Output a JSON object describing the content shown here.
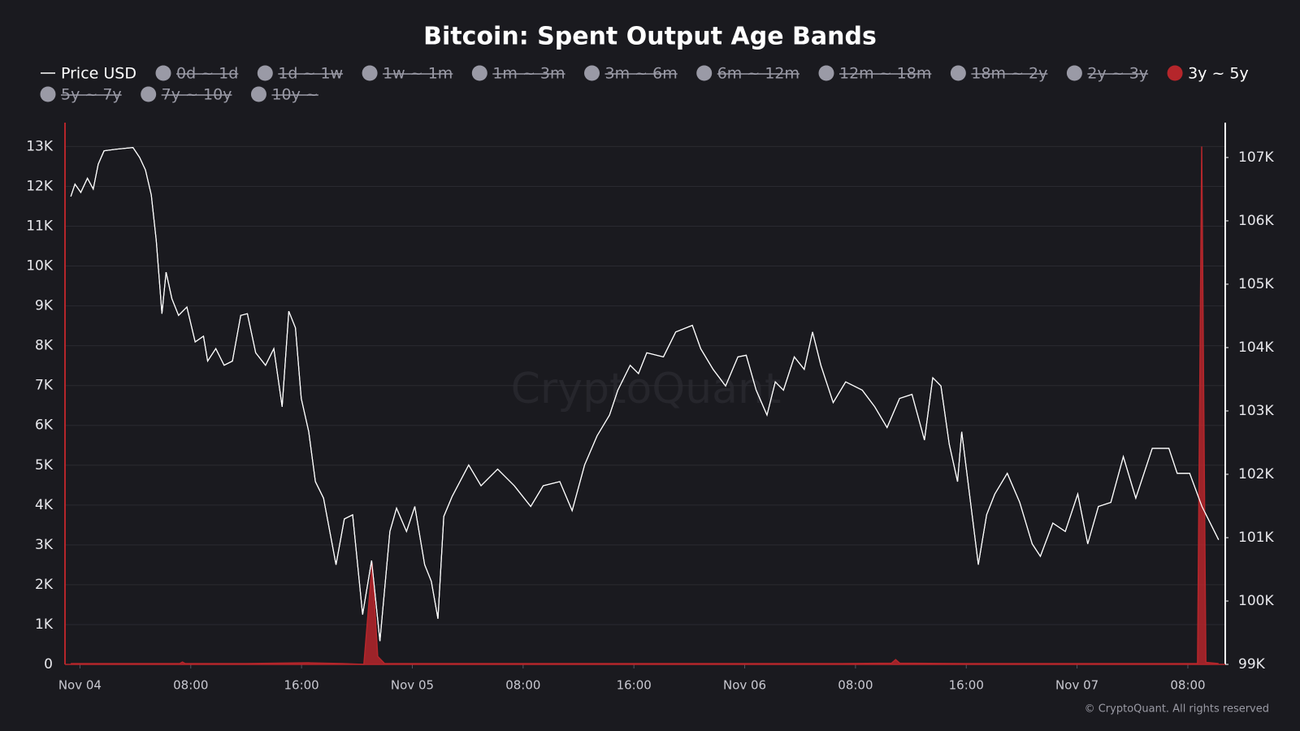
{
  "chart_data": {
    "type": "line_area",
    "title": "Bitcoin: Spent Output Age Bands",
    "watermark": "CryptoQuant",
    "footer": "© CryptoQuant. All rights reserved",
    "xlim": [
      -1.08,
      82.7
    ],
    "xticks": [
      {
        "value": 0,
        "label": "Nov 04"
      },
      {
        "value": 8,
        "label": "08:00"
      },
      {
        "value": 16,
        "label": "16:00"
      },
      {
        "value": 24,
        "label": "Nov 05"
      },
      {
        "value": 32,
        "label": "08:00"
      },
      {
        "value": 40,
        "label": "16:00"
      },
      {
        "value": 48,
        "label": "Nov 06"
      },
      {
        "value": 56,
        "label": "08:00"
      },
      {
        "value": 64,
        "label": "16:00"
      },
      {
        "value": 72,
        "label": "Nov 07"
      },
      {
        "value": 80,
        "label": "08:00"
      }
    ],
    "ylim": [
      0,
      13600
    ],
    "yticks": [
      0,
      {
        "value": 1000,
        "label": "1K"
      },
      {
        "value": 2000,
        "label": "2K"
      },
      {
        "value": 3000,
        "label": "3K"
      },
      {
        "value": 4000,
        "label": "4K"
      },
      {
        "value": 5000,
        "label": "5K"
      },
      {
        "value": 6000,
        "label": "6K"
      },
      {
        "value": 7000,
        "label": "7K"
      },
      {
        "value": 8000,
        "label": "8K"
      },
      {
        "value": 9000,
        "label": "9K"
      },
      {
        "value": 10000,
        "label": "10K"
      },
      {
        "value": 11000,
        "label": "11K"
      },
      {
        "value": 12000,
        "label": "12K"
      },
      {
        "value": 13000,
        "label": "13K"
      }
    ],
    "y2lim": [
      99000,
      107550
    ],
    "y2ticks": [
      {
        "value": 99000,
        "label": "99K"
      },
      {
        "value": 100000,
        "label": "100K"
      },
      {
        "value": 101000,
        "label": "101K"
      },
      {
        "value": 102000,
        "label": "102K"
      },
      {
        "value": 103000,
        "label": "103K"
      },
      {
        "value": 104000,
        "label": "104K"
      },
      {
        "value": 105000,
        "label": "105K"
      },
      {
        "value": 106000,
        "label": "106K"
      },
      {
        "value": 107000,
        "label": "107K"
      }
    ],
    "grid": true,
    "series": [
      {
        "name": "Price USD",
        "kind": "line",
        "axis": "y2",
        "color": "#ffffff",
        "x": [
          -0.66,
          -0.36,
          0.06,
          0.54,
          0.96,
          1.32,
          1.74,
          2.63,
          3.83,
          4.31,
          4.73,
          5.15,
          5.51,
          5.92,
          6.22,
          6.64,
          7.12,
          7.72,
          8.32,
          8.92,
          9.22,
          9.81,
          10.41,
          11.01,
          11.61,
          12.09,
          12.69,
          13.4,
          14.0,
          14.6,
          15.08,
          15.56,
          15.98,
          16.52,
          17.0,
          17.59,
          18.49,
          19.09,
          19.69,
          20.41,
          21.06,
          21.66,
          22.38,
          22.86,
          23.58,
          24.18,
          24.89,
          25.37,
          25.85,
          26.27,
          26.87,
          28.07,
          28.96,
          30.16,
          31.36,
          32.55,
          33.45,
          34.65,
          35.54,
          36.44,
          37.34,
          38.24,
          38.84,
          39.73,
          40.33,
          40.93,
          42.13,
          43.02,
          44.22,
          44.82,
          45.72,
          46.62,
          47.51,
          48.11,
          48.83,
          49.61,
          50.21,
          50.8,
          51.58,
          52.3,
          52.9,
          53.5,
          54.39,
          55.29,
          56.49,
          57.39,
          58.28,
          59.18,
          60.08,
          60.98,
          61.58,
          62.17,
          62.77,
          63.37,
          63.67,
          64.27,
          64.87,
          65.47,
          66.06,
          66.96,
          67.86,
          68.76,
          69.35,
          70.25,
          71.15,
          72.05,
          72.77,
          73.54,
          74.44,
          75.34,
          76.24,
          77.43,
          78.63,
          79.23,
          80.13,
          81.02,
          82.22
        ],
        "values": [
          106384,
          106580,
          106449,
          106672,
          106502,
          106895,
          107105,
          107131,
          107157,
          107000,
          106803,
          106410,
          105689,
          104535,
          105190,
          104771,
          104508,
          104640,
          104089,
          104180,
          103787,
          103984,
          103721,
          103787,
          104508,
          104535,
          103918,
          103721,
          103984,
          103066,
          104574,
          104312,
          103197,
          102672,
          101885,
          101623,
          100574,
          101295,
          101361,
          99787,
          100639,
          99367,
          101098,
          101466,
          101098,
          101492,
          100574,
          100312,
          99721,
          101334,
          101649,
          102148,
          101820,
          102082,
          101820,
          101492,
          101820,
          101885,
          101426,
          102148,
          102607,
          102935,
          103328,
          103721,
          103590,
          103918,
          103853,
          104246,
          104351,
          103984,
          103656,
          103394,
          103853,
          103879,
          103328,
          102935,
          103459,
          103328,
          103853,
          103656,
          104246,
          103721,
          103131,
          103459,
          103328,
          103066,
          102738,
          103197,
          103262,
          102541,
          103525,
          103394,
          102475,
          101885,
          102672,
          101623,
          100574,
          101361,
          101689,
          102016,
          101557,
          100902,
          100705,
          101230,
          101098,
          101689,
          100902,
          101492,
          101557,
          102279,
          101623,
          102410,
          102410,
          102016,
          102016,
          101492,
          100967
        ]
      },
      {
        "name": "0d ~ 1d",
        "hidden": true
      },
      {
        "name": "1d ~ 1w",
        "hidden": true
      },
      {
        "name": "1w ~ 1m",
        "hidden": true
      },
      {
        "name": "1m ~ 3m",
        "hidden": true
      },
      {
        "name": "3m ~ 6m",
        "hidden": true
      },
      {
        "name": "6m ~ 12m",
        "hidden": true
      },
      {
        "name": "12m ~ 18m",
        "hidden": true
      },
      {
        "name": "18m ~ 2y",
        "hidden": true
      },
      {
        "name": "2y ~ 3y",
        "hidden": true
      },
      {
        "name": "3y ~ 5y",
        "kind": "area",
        "axis": "y",
        "color": "#b5262b",
        "x": [
          -0.66,
          3.0,
          7.2,
          7.4,
          7.6,
          12.0,
          16.5,
          19.0,
          20.5,
          21.1,
          21.5,
          22.0,
          26.0,
          32.0,
          40.0,
          48.0,
          55.0,
          58.6,
          58.9,
          59.2,
          64.0,
          70.0,
          76.0,
          79.5,
          80.7,
          81.0,
          81.3,
          82.22
        ],
        "values": [
          20,
          20,
          20,
          60,
          20,
          20,
          40,
          20,
          0,
          2540,
          200,
          20,
          20,
          20,
          20,
          20,
          20,
          30,
          120,
          30,
          20,
          20,
          20,
          20,
          20,
          13000,
          50,
          20
        ]
      },
      {
        "name": "5y ~ 7y",
        "hidden": true
      },
      {
        "name": "7y ~ 10y",
        "hidden": true
      },
      {
        "name": "10y ~",
        "hidden": true
      }
    ]
  }
}
